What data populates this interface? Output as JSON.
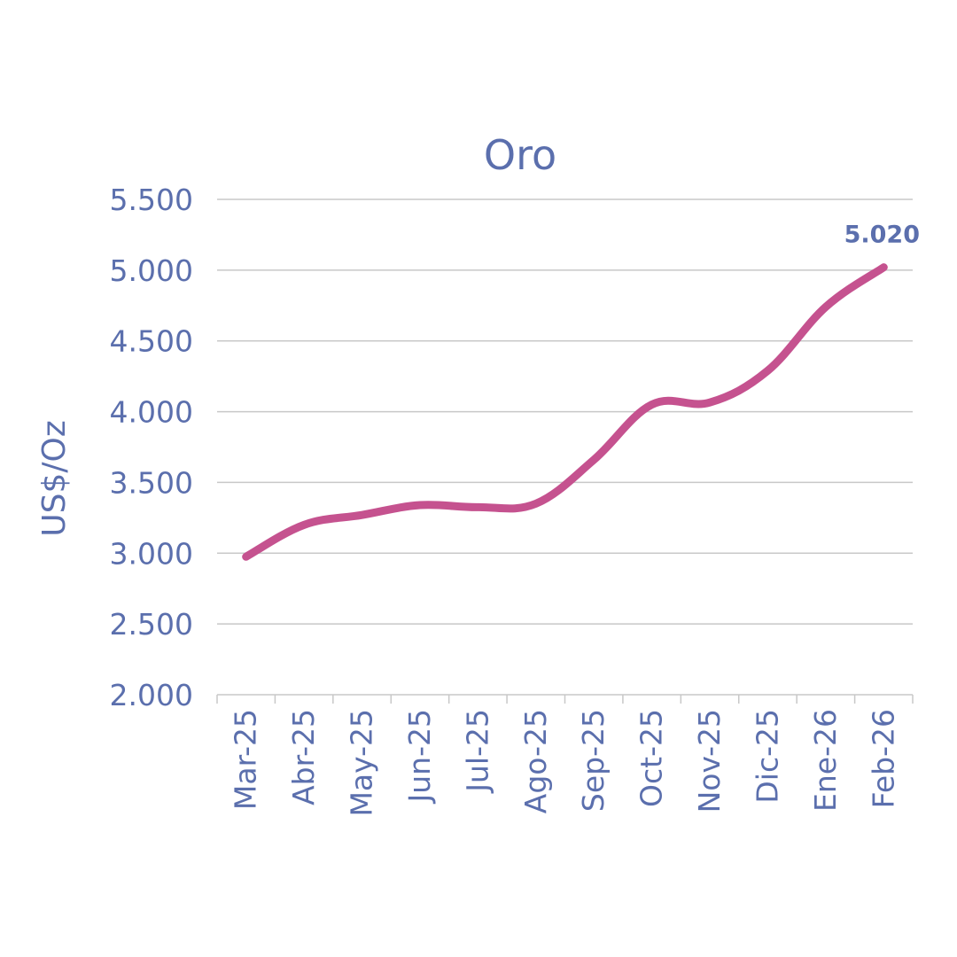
{
  "chart_data": {
    "type": "line",
    "title": "Oro",
    "xlabel": "",
    "ylabel": "US$/Oz",
    "categories": [
      "Mar-25",
      "Abr-25",
      "May-25",
      "Jun-25",
      "Jul-25",
      "Ago-25",
      "Sep-25",
      "Oct-25",
      "Nov-25",
      "Dic-25",
      "Ene-26",
      "Feb-26"
    ],
    "series": [
      {
        "values": [
          2975,
          3200,
          3270,
          3340,
          3325,
          3350,
          3660,
          4050,
          4065,
          4290,
          4740,
          5020
        ]
      }
    ],
    "ylim": [
      2000,
      5500
    ],
    "yticks": [
      2000,
      2500,
      3000,
      3500,
      4000,
      4500,
      5000,
      5500
    ],
    "ytick_labels": [
      "2.000",
      "2.500",
      "3.000",
      "3.500",
      "4.000",
      "4.500",
      "5.000",
      "5.500"
    ],
    "data_labels": [
      {
        "index": 11,
        "text": "5.020"
      }
    ],
    "grid": true,
    "legend": "none",
    "colors": {
      "line": "#c5528f",
      "text": "#5b6fad",
      "grid": "#c8c8c8",
      "axis": "#c8c8c8"
    }
  }
}
